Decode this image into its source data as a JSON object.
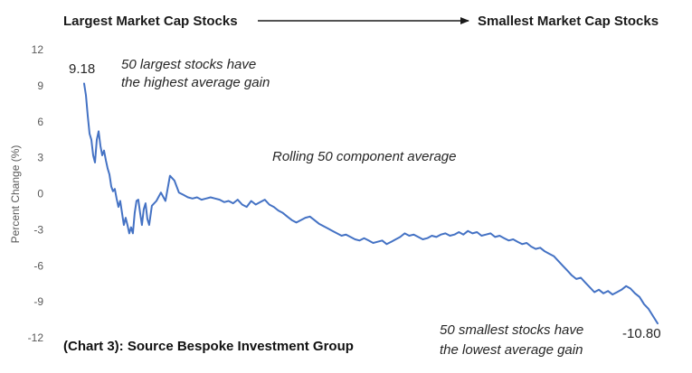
{
  "chart_data": {
    "type": "line",
    "title": "",
    "header_left": "Largest Market Cap Stocks",
    "header_right": "Smallest Market Cap Stocks",
    "ylabel": "Percent Change (%)",
    "xlabel": "",
    "ylim": [
      -12,
      12
    ],
    "yticks": [
      "12",
      "9",
      "6",
      "3",
      "0",
      "-3",
      "-6",
      "-9",
      "-12"
    ],
    "yticks_values": [
      12,
      9,
      6,
      3,
      0,
      -3,
      -6,
      -9,
      -12
    ],
    "grid": false,
    "x_description": "Rank by market cap (largest to smallest)",
    "series": [
      {
        "color": "#4472c4",
        "x": [
          0,
          2,
          4,
          6,
          8,
          10,
          12,
          14,
          16,
          18,
          20,
          22,
          24,
          26,
          28,
          30,
          32,
          34,
          36,
          38,
          40,
          42,
          44,
          46,
          48,
          50,
          52,
          54,
          56,
          58,
          60,
          62,
          64,
          66,
          68,
          70,
          72,
          75,
          80,
          85,
          90,
          95,
          100,
          105,
          110,
          115,
          120,
          125,
          130,
          135,
          140,
          145,
          150,
          155,
          160,
          165,
          170,
          175,
          180,
          185,
          190,
          195,
          200,
          205,
          210,
          215,
          220,
          225,
          230,
          235,
          240,
          245,
          250,
          255,
          260,
          265,
          270,
          275,
          280,
          285,
          290,
          295,
          300,
          305,
          310,
          315,
          320,
          325,
          330,
          335,
          340,
          345,
          350,
          355,
          360,
          365,
          370,
          375,
          380,
          385,
          390,
          395,
          400,
          405,
          410,
          415,
          420,
          425,
          430,
          435,
          440,
          445,
          450,
          455,
          460,
          465,
          470,
          475,
          480,
          485,
          490,
          495,
          500,
          505,
          510,
          515,
          520,
          525,
          530,
          535,
          540,
          545,
          550,
          555,
          560,
          565,
          570,
          575,
          580,
          585,
          590,
          595,
          600,
          605,
          610,
          615,
          620,
          625,
          630,
          635
        ],
        "values": [
          9.18,
          8.2,
          6.5,
          5.0,
          4.5,
          3.2,
          2.6,
          4.5,
          5.2,
          4.0,
          3.2,
          3.6,
          2.8,
          2.1,
          1.6,
          0.6,
          0.2,
          0.4,
          -0.4,
          -1.1,
          -0.6,
          -1.6,
          -2.6,
          -2.0,
          -2.6,
          -3.3,
          -2.8,
          -3.3,
          -1.6,
          -0.6,
          -0.5,
          -1.6,
          -2.6,
          -1.3,
          -0.8,
          -2.1,
          -2.6,
          -1.0,
          -0.6,
          0.1,
          -0.6,
          1.5,
          1.1,
          0.1,
          -0.1,
          -0.3,
          -0.4,
          -0.3,
          -0.5,
          -0.4,
          -0.3,
          -0.4,
          -0.5,
          -0.7,
          -0.6,
          -0.8,
          -0.5,
          -0.9,
          -1.1,
          -0.6,
          -0.9,
          -0.7,
          -0.5,
          -0.9,
          -1.1,
          -1.4,
          -1.6,
          -1.9,
          -2.2,
          -2.4,
          -2.2,
          -2.0,
          -1.9,
          -2.2,
          -2.5,
          -2.7,
          -2.9,
          -3.1,
          -3.3,
          -3.5,
          -3.4,
          -3.6,
          -3.8,
          -3.9,
          -3.7,
          -3.9,
          -4.1,
          -4.0,
          -3.9,
          -4.2,
          -4.0,
          -3.8,
          -3.6,
          -3.3,
          -3.5,
          -3.4,
          -3.6,
          -3.8,
          -3.7,
          -3.5,
          -3.6,
          -3.4,
          -3.3,
          -3.5,
          -3.4,
          -3.2,
          -3.4,
          -3.1,
          -3.3,
          -3.2,
          -3.5,
          -3.4,
          -3.3,
          -3.6,
          -3.5,
          -3.7,
          -3.9,
          -3.8,
          -4.0,
          -4.2,
          -4.1,
          -4.4,
          -4.6,
          -4.5,
          -4.8,
          -5.0,
          -5.2,
          -5.6,
          -6.0,
          -6.4,
          -6.8,
          -7.1,
          -7.0,
          -7.4,
          -7.8,
          -8.2,
          -8.0,
          -8.3,
          -8.1,
          -8.4,
          -8.2,
          -8.0,
          -7.7,
          -7.9,
          -8.3,
          -8.6,
          -9.2,
          -9.6,
          -10.2,
          -10.8
        ]
      }
    ],
    "xlim": [
      0,
      635
    ],
    "data_labels": [
      {
        "text": "9.18",
        "x": 0,
        "y": 9.18
      },
      {
        "text": "-10.80",
        "x": 635,
        "y": -10.8
      }
    ],
    "annotations": [
      {
        "line1": "50 largest stocks have",
        "line2": "the highest average gain"
      },
      {
        "line1": "Rolling 50 component average",
        "line2": ""
      },
      {
        "line1": "50 smallest stocks have",
        "line2": "the lowest average gain"
      }
    ],
    "source": "(Chart 3): Source Bespoke Investment Group"
  }
}
